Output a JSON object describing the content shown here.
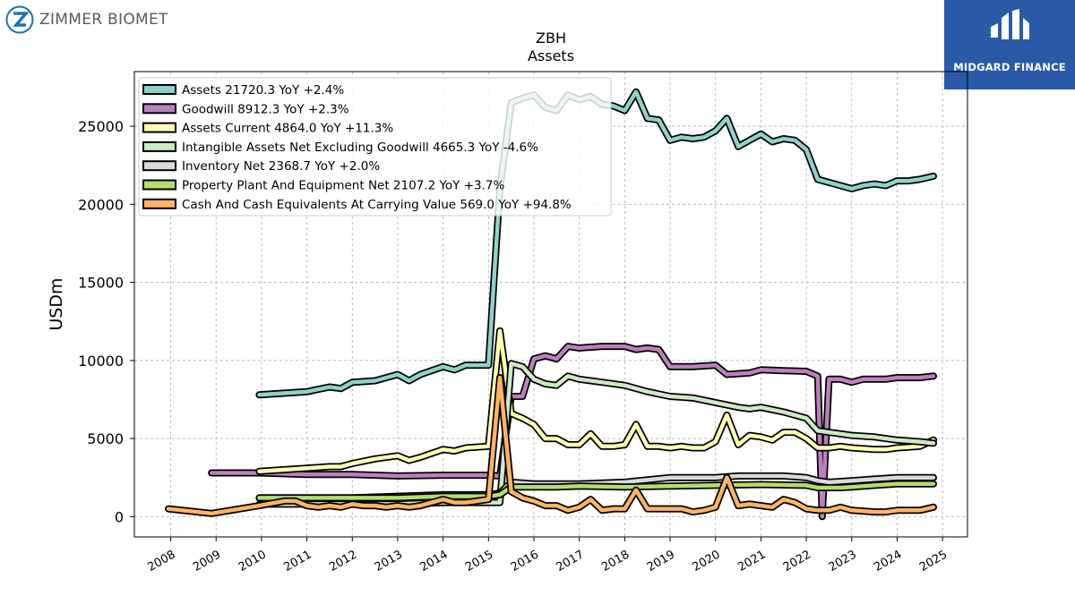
{
  "header": {
    "company_logo_text": "ZIMMER BIOMET"
  },
  "badge": {
    "text": "MIDGARD FINANCE",
    "color": "#2a5aa7"
  },
  "chart_data": {
    "type": "line",
    "title": "ZBH",
    "subtitle": "Assets",
    "ylabel": "USDm",
    "xlabel": "",
    "ylim": [
      -1300,
      28500
    ],
    "xlim": [
      2007.2,
      2025.55
    ],
    "yticks": [
      0,
      5000,
      10000,
      15000,
      20000,
      25000
    ],
    "xticks": [
      2008,
      2009,
      2010,
      2011,
      2012,
      2013,
      2014,
      2015,
      2016,
      2017,
      2018,
      2019,
      2020,
      2021,
      2022,
      2023,
      2024,
      2025
    ],
    "grid": true,
    "legend_position": "top-left",
    "series": [
      {
        "name": "Assets  21720.3 YoY +2.4%",
        "color": "#8dd3c7",
        "points": [
          [
            2009.95,
            7800
          ],
          [
            2011.0,
            8000
          ],
          [
            2011.5,
            8300
          ],
          [
            2011.75,
            8200
          ],
          [
            2012.0,
            8600
          ],
          [
            2012.5,
            8700
          ],
          [
            2013.0,
            9100
          ],
          [
            2013.25,
            8700
          ],
          [
            2013.5,
            9100
          ],
          [
            2014.0,
            9600
          ],
          [
            2014.25,
            9400
          ],
          [
            2014.5,
            9700
          ],
          [
            2015.0,
            9700
          ],
          [
            2015.25,
            21000
          ],
          [
            2015.5,
            26500
          ],
          [
            2015.75,
            26800
          ],
          [
            2016.0,
            27000
          ],
          [
            2016.25,
            26200
          ],
          [
            2016.5,
            26000
          ],
          [
            2016.75,
            27000
          ],
          [
            2017.0,
            26700
          ],
          [
            2017.25,
            26900
          ],
          [
            2017.5,
            26400
          ],
          [
            2017.75,
            26300
          ],
          [
            2018.0,
            26000
          ],
          [
            2018.25,
            27200
          ],
          [
            2018.5,
            25500
          ],
          [
            2018.75,
            25400
          ],
          [
            2019.0,
            24100
          ],
          [
            2019.25,
            24300
          ],
          [
            2019.5,
            24200
          ],
          [
            2019.75,
            24300
          ],
          [
            2020.0,
            24700
          ],
          [
            2020.25,
            25500
          ],
          [
            2020.5,
            23700
          ],
          [
            2020.75,
            24100
          ],
          [
            2021.0,
            24500
          ],
          [
            2021.25,
            24000
          ],
          [
            2021.5,
            24200
          ],
          [
            2021.75,
            24100
          ],
          [
            2022.0,
            23500
          ],
          [
            2022.25,
            21600
          ],
          [
            2022.5,
            21400
          ],
          [
            2022.75,
            21200
          ],
          [
            2023.0,
            21000
          ],
          [
            2023.25,
            21200
          ],
          [
            2023.5,
            21300
          ],
          [
            2023.75,
            21200
          ],
          [
            2024.0,
            21500
          ],
          [
            2024.25,
            21500
          ],
          [
            2024.5,
            21600
          ],
          [
            2024.8,
            21800
          ]
        ]
      },
      {
        "name": "Goodwill  8912.3 YoY +2.3%",
        "color": "#bc80bd",
        "points": [
          [
            2008.9,
            2800
          ],
          [
            2009.95,
            2800
          ],
          [
            2011.0,
            2700
          ],
          [
            2012.0,
            2700
          ],
          [
            2013.0,
            2600
          ],
          [
            2014.0,
            2650
          ],
          [
            2014.5,
            2650
          ],
          [
            2015.0,
            2650
          ],
          [
            2015.25,
            2600
          ],
          [
            2015.5,
            7700
          ],
          [
            2015.75,
            7700
          ],
          [
            2016.0,
            10100
          ],
          [
            2016.25,
            10300
          ],
          [
            2016.5,
            10100
          ],
          [
            2016.75,
            10900
          ],
          [
            2017.0,
            10800
          ],
          [
            2017.5,
            10900
          ],
          [
            2018.0,
            10900
          ],
          [
            2018.25,
            10700
          ],
          [
            2018.5,
            10800
          ],
          [
            2018.75,
            10700
          ],
          [
            2019.0,
            9600
          ],
          [
            2019.5,
            9600
          ],
          [
            2020.0,
            9700
          ],
          [
            2020.25,
            9100
          ],
          [
            2020.75,
            9200
          ],
          [
            2021.0,
            9400
          ],
          [
            2021.5,
            9350
          ],
          [
            2022.0,
            9300
          ],
          [
            2022.25,
            9000
          ],
          [
            2022.35,
            0
          ],
          [
            2022.5,
            8800
          ],
          [
            2022.75,
            8800
          ],
          [
            2023.0,
            8600
          ],
          [
            2023.25,
            8800
          ],
          [
            2023.75,
            8800
          ],
          [
            2024.0,
            8900
          ],
          [
            2024.5,
            8900
          ],
          [
            2024.8,
            9000
          ]
        ]
      },
      {
        "name": "Assets Current  4864.0 YoY +11.3%",
        "color": "#ffffb3",
        "points": [
          [
            2009.95,
            2900
          ],
          [
            2011.0,
            3100
          ],
          [
            2011.5,
            3200
          ],
          [
            2011.75,
            3200
          ],
          [
            2012.0,
            3400
          ],
          [
            2012.5,
            3700
          ],
          [
            2013.0,
            3900
          ],
          [
            2013.25,
            3600
          ],
          [
            2013.5,
            3800
          ],
          [
            2014.0,
            4300
          ],
          [
            2014.25,
            4200
          ],
          [
            2014.5,
            4400
          ],
          [
            2015.0,
            4500
          ],
          [
            2015.25,
            11900
          ],
          [
            2015.5,
            6600
          ],
          [
            2015.75,
            6300
          ],
          [
            2016.0,
            5900
          ],
          [
            2016.25,
            5000
          ],
          [
            2016.5,
            5000
          ],
          [
            2016.75,
            4600
          ],
          [
            2017.0,
            4600
          ],
          [
            2017.25,
            5300
          ],
          [
            2017.5,
            4500
          ],
          [
            2017.75,
            4500
          ],
          [
            2018.0,
            4600
          ],
          [
            2018.25,
            5900
          ],
          [
            2018.5,
            4500
          ],
          [
            2018.75,
            4500
          ],
          [
            2019.0,
            4400
          ],
          [
            2019.25,
            4500
          ],
          [
            2019.5,
            4400
          ],
          [
            2019.75,
            4400
          ],
          [
            2020.0,
            4800
          ],
          [
            2020.25,
            6500
          ],
          [
            2020.5,
            4600
          ],
          [
            2020.75,
            5200
          ],
          [
            2021.0,
            5100
          ],
          [
            2021.25,
            4900
          ],
          [
            2021.5,
            5400
          ],
          [
            2021.75,
            5400
          ],
          [
            2022.0,
            5000
          ],
          [
            2022.25,
            4400
          ],
          [
            2022.5,
            4400
          ],
          [
            2022.75,
            4500
          ],
          [
            2023.0,
            4400
          ],
          [
            2023.5,
            4300
          ],
          [
            2023.75,
            4300
          ],
          [
            2024.0,
            4400
          ],
          [
            2024.5,
            4500
          ],
          [
            2024.8,
            4900
          ]
        ]
      },
      {
        "name": "Intangible Assets Net Excluding Goodwill  4665.3 YoY -4.6%",
        "color": "#ccebc5",
        "points": [
          [
            2009.95,
            800
          ],
          [
            2011.0,
            800
          ],
          [
            2012.0,
            800
          ],
          [
            2013.0,
            800
          ],
          [
            2014.0,
            900
          ],
          [
            2014.5,
            900
          ],
          [
            2015.0,
            900
          ],
          [
            2015.25,
            900
          ],
          [
            2015.5,
            9800
          ],
          [
            2015.75,
            9600
          ],
          [
            2016.0,
            8800
          ],
          [
            2016.25,
            8500
          ],
          [
            2016.5,
            8400
          ],
          [
            2016.75,
            9000
          ],
          [
            2017.0,
            8800
          ],
          [
            2017.5,
            8600
          ],
          [
            2018.0,
            8400
          ],
          [
            2018.5,
            8000
          ],
          [
            2019.0,
            7700
          ],
          [
            2019.5,
            7600
          ],
          [
            2020.0,
            7300
          ],
          [
            2020.5,
            7000
          ],
          [
            2020.75,
            6900
          ],
          [
            2021.0,
            7000
          ],
          [
            2021.5,
            6700
          ],
          [
            2022.0,
            6300
          ],
          [
            2022.25,
            5500
          ],
          [
            2022.5,
            5400
          ],
          [
            2022.75,
            5300
          ],
          [
            2023.0,
            5200
          ],
          [
            2023.5,
            5100
          ],
          [
            2023.75,
            5000
          ],
          [
            2024.0,
            4900
          ],
          [
            2024.5,
            4800
          ],
          [
            2024.8,
            4700
          ]
        ]
      },
      {
        "name": "Inventory Net  2368.7 YoY +2.0%",
        "color": "#d9d9d9",
        "points": [
          [
            2009.95,
            1200
          ],
          [
            2011.0,
            1200
          ],
          [
            2012.0,
            1200
          ],
          [
            2013.0,
            1300
          ],
          [
            2014.0,
            1400
          ],
          [
            2015.0,
            1400
          ],
          [
            2015.25,
            1500
          ],
          [
            2015.5,
            2200
          ],
          [
            2016.0,
            2100
          ],
          [
            2016.5,
            2100
          ],
          [
            2017.0,
            2100
          ],
          [
            2018.0,
            2200
          ],
          [
            2019.0,
            2500
          ],
          [
            2020.0,
            2500
          ],
          [
            2020.5,
            2600
          ],
          [
            2021.0,
            2600
          ],
          [
            2021.5,
            2600
          ],
          [
            2022.0,
            2500
          ],
          [
            2022.25,
            2300
          ],
          [
            2022.5,
            2200
          ],
          [
            2023.0,
            2300
          ],
          [
            2023.5,
            2400
          ],
          [
            2024.0,
            2500
          ],
          [
            2024.8,
            2500
          ]
        ]
      },
      {
        "name": "Property Plant And Equipment Net  2107.2 YoY +3.7%",
        "color": "#b3de69",
        "points": [
          [
            2009.95,
            1200
          ],
          [
            2011.0,
            1200
          ],
          [
            2012.0,
            1200
          ],
          [
            2013.0,
            1200
          ],
          [
            2014.0,
            1300
          ],
          [
            2015.0,
            1300
          ],
          [
            2015.25,
            1400
          ],
          [
            2015.5,
            1900
          ],
          [
            2016.0,
            1900
          ],
          [
            2016.5,
            1900
          ],
          [
            2017.0,
            1950
          ],
          [
            2018.0,
            1900
          ],
          [
            2019.0,
            1950
          ],
          [
            2020.0,
            2000
          ],
          [
            2021.0,
            2050
          ],
          [
            2022.0,
            2000
          ],
          [
            2022.25,
            1850
          ],
          [
            2022.75,
            1850
          ],
          [
            2023.0,
            1900
          ],
          [
            2023.5,
            2000
          ],
          [
            2024.0,
            2100
          ],
          [
            2024.8,
            2100
          ]
        ]
      },
      {
        "name": "Cash And Cash Equivalents At Carrying Value  569.0 YoY +94.8%",
        "color": "#fdb462",
        "points": [
          [
            2007.95,
            500
          ],
          [
            2008.9,
            200
          ],
          [
            2009.95,
            700
          ],
          [
            2010.5,
            1000
          ],
          [
            2010.75,
            1000
          ],
          [
            2011.0,
            700
          ],
          [
            2011.25,
            600
          ],
          [
            2011.5,
            700
          ],
          [
            2011.75,
            600
          ],
          [
            2012.0,
            800
          ],
          [
            2012.25,
            700
          ],
          [
            2012.5,
            700
          ],
          [
            2012.75,
            600
          ],
          [
            2013.0,
            700
          ],
          [
            2013.25,
            600
          ],
          [
            2013.5,
            700
          ],
          [
            2013.75,
            900
          ],
          [
            2014.0,
            1100
          ],
          [
            2014.25,
            900
          ],
          [
            2014.5,
            900
          ],
          [
            2014.75,
            1000
          ],
          [
            2015.0,
            1100
          ],
          [
            2015.25,
            8900
          ],
          [
            2015.5,
            1600
          ],
          [
            2015.75,
            1200
          ],
          [
            2016.0,
            1000
          ],
          [
            2016.25,
            700
          ],
          [
            2016.5,
            700
          ],
          [
            2016.75,
            400
          ],
          [
            2017.0,
            600
          ],
          [
            2017.25,
            1100
          ],
          [
            2017.5,
            400
          ],
          [
            2017.75,
            500
          ],
          [
            2018.0,
            500
          ],
          [
            2018.25,
            1700
          ],
          [
            2018.5,
            500
          ],
          [
            2018.75,
            500
          ],
          [
            2019.0,
            500
          ],
          [
            2019.25,
            500
          ],
          [
            2019.5,
            300
          ],
          [
            2019.75,
            400
          ],
          [
            2020.0,
            600
          ],
          [
            2020.25,
            2500
          ],
          [
            2020.5,
            700
          ],
          [
            2020.75,
            800
          ],
          [
            2021.0,
            700
          ],
          [
            2021.25,
            600
          ],
          [
            2021.5,
            1100
          ],
          [
            2021.75,
            900
          ],
          [
            2022.0,
            500
          ],
          [
            2022.25,
            400
          ],
          [
            2022.5,
            400
          ],
          [
            2022.75,
            600
          ],
          [
            2023.0,
            400
          ],
          [
            2023.5,
            300
          ],
          [
            2023.75,
            300
          ],
          [
            2024.0,
            400
          ],
          [
            2024.5,
            400
          ],
          [
            2024.8,
            600
          ]
        ]
      }
    ]
  }
}
